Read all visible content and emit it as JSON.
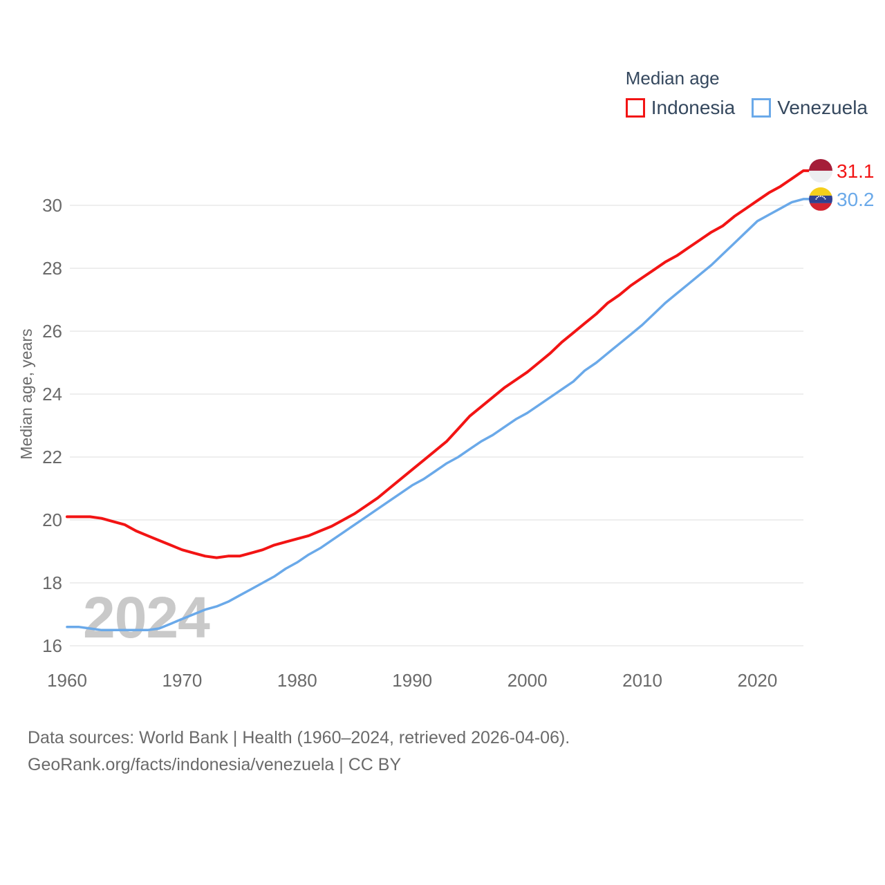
{
  "legend": {
    "title": "Median age",
    "items": [
      {
        "label": "Indonesia",
        "color": "#f21414"
      },
      {
        "label": "Venezuela",
        "color": "#6aa9e9"
      }
    ]
  },
  "watermark": "2024",
  "footer": {
    "line1": "Data sources: World Bank | Health (1960–2024, retrieved 2026-04-06).",
    "line2": "GeoRank.org/facts/indonesia/venezuela | CC BY"
  },
  "colors": {
    "grid": "#e9e9e9",
    "tick_text": "#6a6a6a",
    "legend_text": "#35485e",
    "watermark": "#c9c9c9"
  },
  "flags": {
    "indonesia": {
      "top": "#a51e39",
      "bottom": "#eceef0"
    },
    "venezuela": {
      "yellow": "#f5cf1b",
      "blue": "#31418f",
      "red": "#d32430",
      "stars": "#ffffff"
    }
  },
  "chart_data": {
    "type": "line",
    "title": "Median age",
    "xlabel": "",
    "ylabel": "Median age, years",
    "xlim": [
      1960,
      2024
    ],
    "ylim": [
      16,
      31.5
    ],
    "grid": true,
    "legend_position": "top-right",
    "xticks": [
      1960,
      1970,
      1980,
      1990,
      2000,
      2010,
      2020
    ],
    "yticks": [
      16,
      18,
      20,
      22,
      24,
      26,
      28,
      30
    ],
    "x": [
      1960,
      1961,
      1962,
      1963,
      1964,
      1965,
      1966,
      1967,
      1968,
      1969,
      1970,
      1971,
      1972,
      1973,
      1974,
      1975,
      1976,
      1977,
      1978,
      1979,
      1980,
      1981,
      1982,
      1983,
      1984,
      1985,
      1986,
      1987,
      1988,
      1989,
      1990,
      1991,
      1992,
      1993,
      1994,
      1995,
      1996,
      1997,
      1998,
      1999,
      2000,
      2001,
      2002,
      2003,
      2004,
      2005,
      2006,
      2007,
      2008,
      2009,
      2010,
      2011,
      2012,
      2013,
      2014,
      2015,
      2016,
      2017,
      2018,
      2019,
      2020,
      2021,
      2022,
      2023,
      2024
    ],
    "series": [
      {
        "name": "Indonesia",
        "color": "#f21414",
        "end_label": "31.1",
        "flag": "indonesia",
        "line_width": 4,
        "values": [
          20.1,
          20.1,
          20.1,
          20.05,
          19.95,
          19.85,
          19.65,
          19.5,
          19.35,
          19.2,
          19.05,
          18.95,
          18.85,
          18.8,
          18.85,
          18.85,
          18.95,
          19.05,
          19.2,
          19.3,
          19.4,
          19.5,
          19.65,
          19.8,
          20.0,
          20.2,
          20.45,
          20.7,
          21.0,
          21.3,
          21.6,
          21.9,
          22.2,
          22.5,
          22.9,
          23.3,
          23.6,
          23.9,
          24.2,
          24.45,
          24.7,
          25.0,
          25.3,
          25.65,
          25.95,
          26.25,
          26.55,
          26.9,
          27.15,
          27.45,
          27.7,
          27.95,
          28.2,
          28.4,
          28.65,
          28.9,
          29.15,
          29.35,
          29.65,
          29.9,
          30.15,
          30.4,
          30.6,
          30.85,
          31.1
        ]
      },
      {
        "name": "Venezuela",
        "color": "#6aa9e9",
        "end_label": "30.2",
        "flag": "venezuela",
        "line_width": 3.5,
        "values": [
          16.6,
          16.6,
          16.55,
          16.5,
          16.5,
          16.5,
          16.5,
          16.5,
          16.55,
          16.7,
          16.85,
          17.0,
          17.15,
          17.25,
          17.4,
          17.6,
          17.8,
          18.0,
          18.2,
          18.45,
          18.65,
          18.9,
          19.1,
          19.35,
          19.6,
          19.85,
          20.1,
          20.35,
          20.6,
          20.85,
          21.1,
          21.3,
          21.55,
          21.8,
          22.0,
          22.25,
          22.5,
          22.7,
          22.95,
          23.2,
          23.4,
          23.65,
          23.9,
          24.15,
          24.4,
          24.75,
          25.0,
          25.3,
          25.6,
          25.9,
          26.2,
          26.55,
          26.9,
          27.2,
          27.5,
          27.8,
          28.1,
          28.45,
          28.8,
          29.15,
          29.5,
          29.7,
          29.9,
          30.1,
          30.2
        ]
      }
    ]
  }
}
